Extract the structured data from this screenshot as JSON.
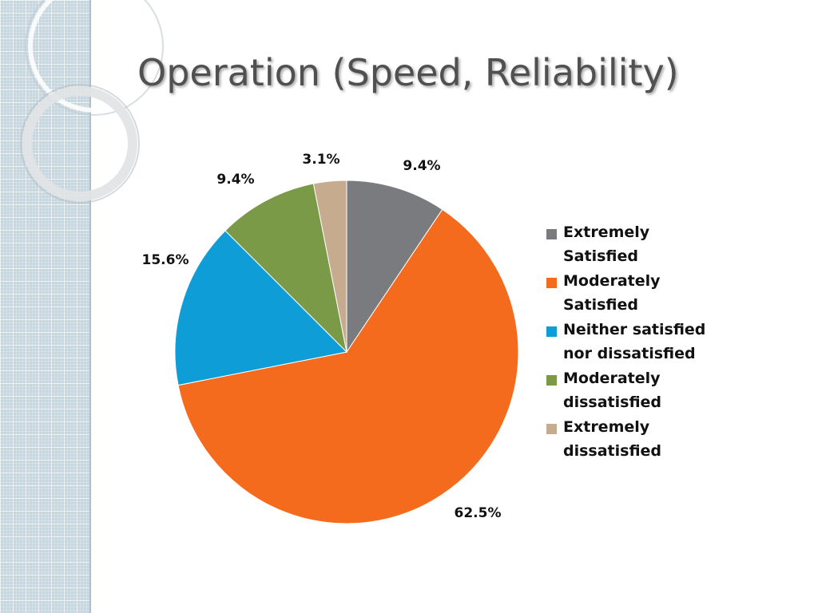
{
  "slide": {
    "title": "Operation (Speed, Reliability)"
  },
  "chart_data": {
    "type": "pie",
    "title": "",
    "start_angle_deg": 0,
    "direction": "clockwise",
    "legend_position": "right",
    "slices": [
      {
        "name": "Extremely Satisfied",
        "legend_label": "Extremely\nSatisfied",
        "value": 9.4,
        "label": "9.4%",
        "color": "#7a7b7e"
      },
      {
        "name": "Moderately Satisfied",
        "legend_label": "Moderately\nSatisfied",
        "value": 62.5,
        "label": "62.5%",
        "color": "#f46b1e"
      },
      {
        "name": "Neither satisfied nor dissatisfied",
        "legend_label": "Neither satisfied\nnor dissatisfied",
        "value": 15.6,
        "label": "15.6%",
        "color": "#0f9dd8"
      },
      {
        "name": "Moderately dissatisfied",
        "legend_label": "Moderately\ndissatisfied",
        "value": 9.4,
        "label": "9.4%",
        "color": "#7a9a48"
      },
      {
        "name": "Extremely dissatisfied",
        "legend_label": "Extremely\ndissatisfied",
        "value": 3.1,
        "label": "3.1%",
        "color": "#c6ab8f"
      }
    ]
  }
}
